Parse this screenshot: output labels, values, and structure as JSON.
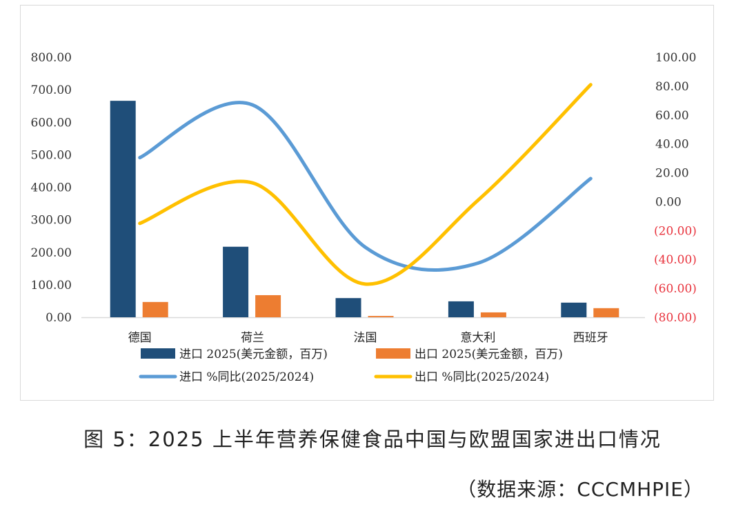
{
  "chart_data": {
    "type": "bar+line",
    "title": "",
    "categories": [
      "德国",
      "荷兰",
      "法国",
      "意大利",
      "西班牙"
    ],
    "series": [
      {
        "name": "进口 2025(美元金额，百万)",
        "kind": "bar",
        "axis": "left",
        "color": "#1f4e79",
        "values": [
          666,
          217,
          59,
          49,
          45
        ]
      },
      {
        "name": "出口 2025(美元金额，百万)",
        "kind": "bar",
        "axis": "left",
        "color": "#ed7d31",
        "values": [
          47,
          68,
          4,
          15,
          28
        ]
      },
      {
        "name": "进口 %同比(2025/2024)",
        "kind": "line",
        "axis": "right",
        "color": "#5b9bd5",
        "values": [
          30.5,
          67,
          -31.5,
          -42.5,
          16
        ]
      },
      {
        "name": "出口 %同比(2025/2024)",
        "kind": "line",
        "axis": "right",
        "color": "#ffc000",
        "values": [
          -15,
          13,
          -57,
          1,
          81
        ]
      }
    ],
    "left_axis": {
      "range": [
        0,
        800
      ],
      "ticks": [
        0,
        100,
        200,
        300,
        400,
        500,
        600,
        700,
        800
      ],
      "tick_labels": [
        "0.00",
        "100.00",
        "200.00",
        "300.00",
        "400.00",
        "500.00",
        "600.00",
        "700.00",
        "800.00"
      ]
    },
    "right_axis": {
      "range": [
        -80,
        100
      ],
      "ticks": [
        -80,
        -60,
        -40,
        -20,
        0,
        20,
        40,
        60,
        80,
        100
      ],
      "tick_labels": [
        "(80.00)",
        "(60.00)",
        "(40.00)",
        "(20.00)",
        "0.00",
        "20.00",
        "40.00",
        "60.00",
        "80.00",
        "100.00"
      ],
      "negative_color": "#e8323c"
    },
    "xlabel": "",
    "ylabel": "",
    "grid": false,
    "legend_position": "bottom"
  },
  "caption": "图 5：2025 上半年营养保健食品中国与欧盟国家进出口情况",
  "source": "（数据来源：CCCMHPIE）"
}
